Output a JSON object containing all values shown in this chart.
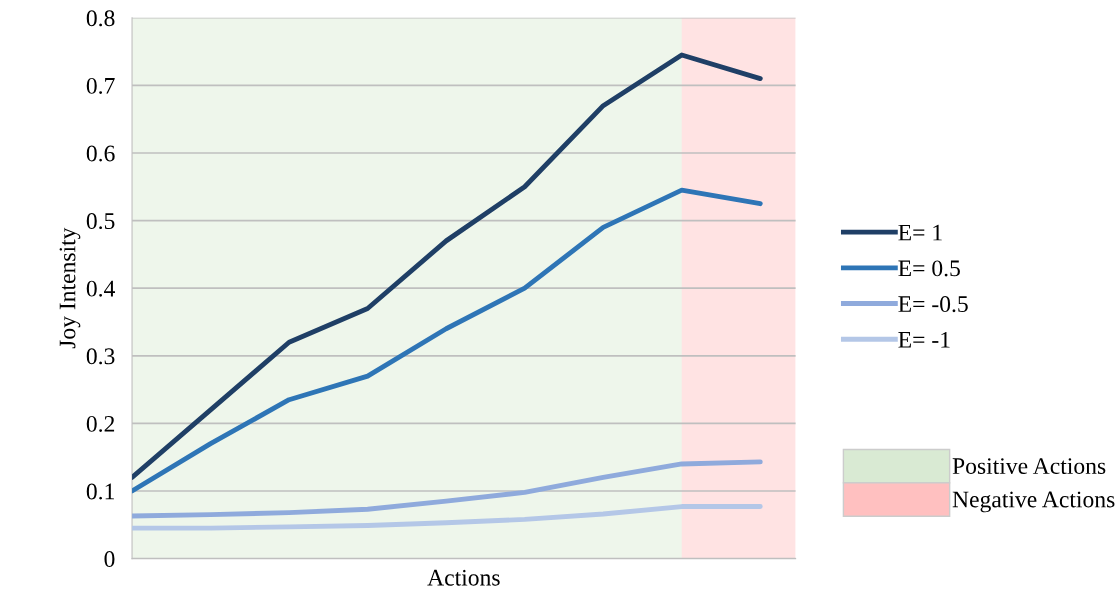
{
  "chart_data": {
    "type": "line",
    "xlabel": "Actions",
    "ylabel": "Joy Intensity",
    "categories": [
      null,
      null,
      null,
      null,
      null,
      null,
      null,
      null,
      null
    ],
    "ylim": [
      0,
      0.8
    ],
    "yticks": [
      0,
      0.1,
      0.2,
      0.3,
      0.4,
      0.5,
      0.6,
      0.7,
      0.8
    ],
    "series": [
      {
        "name": "E= 1",
        "color": "#1f3f66",
        "values": [
          0.12,
          0.22,
          0.32,
          0.37,
          0.47,
          0.55,
          0.67,
          0.745,
          0.71
        ]
      },
      {
        "name": "E= 0.5",
        "color": "#2e75b6",
        "values": [
          0.1,
          0.17,
          0.235,
          0.27,
          0.34,
          0.4,
          0.49,
          0.545,
          0.525
        ]
      },
      {
        "name": "E= -0.5",
        "color": "#8faadc",
        "values": [
          0.063,
          0.065,
          0.068,
          0.073,
          0.085,
          0.098,
          0.12,
          0.14,
          0.143
        ]
      },
      {
        "name": "E= -1",
        "color": "#b4c7e7",
        "values": [
          0.045,
          0.045,
          0.047,
          0.049,
          0.053,
          0.058,
          0.066,
          0.077,
          0.077
        ]
      }
    ],
    "annotations": [
      "Positive Actions",
      "Negative Actions"
    ],
    "grid": "y",
    "legend": "right",
    "tick_labels": "y",
    "marker": "none",
    "line_style": "solid"
  }
}
